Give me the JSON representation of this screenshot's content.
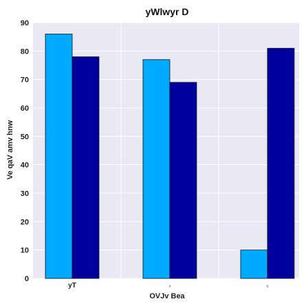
{
  "chart_data": {
    "type": "bar",
    "title": "yWlwyr D",
    "xlabel": "OVJv Bea",
    "ylabel": "Ve qaV amv hnw",
    "categories": [
      "yT",
      "x",
      "s"
    ],
    "series": [
      {
        "values": [
          86,
          77,
          10
        ],
        "color": "#00aaff"
      },
      {
        "values": [
          78,
          69,
          81
        ],
        "color": "#00009e"
      }
    ],
    "ylim": [
      0,
      90
    ],
    "yticks": [
      0,
      10,
      20,
      30,
      40,
      50,
      60,
      70,
      80,
      90
    ],
    "grid": true,
    "legend": "none",
    "background": "#e8e9f2",
    "grid_color": "#ffffff",
    "bar_edge_color": "#111111"
  }
}
